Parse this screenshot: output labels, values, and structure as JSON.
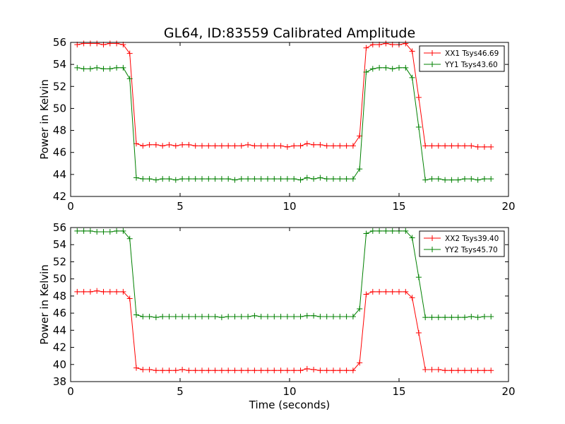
{
  "title": "GL64, ID:83559 Calibrated Amplitude",
  "chart_data": [
    {
      "type": "line",
      "title": "GL64, ID:83559 Calibrated Amplitude",
      "xlabel": "",
      "ylabel": "Power in Kelvin",
      "xlim": [
        0,
        20
      ],
      "ylim": [
        42,
        56
      ],
      "xticks": [
        "0",
        "5",
        "10",
        "15",
        "20"
      ],
      "yticks": [
        "42",
        "44",
        "46",
        "48",
        "50",
        "52",
        "54",
        "56"
      ],
      "grid": false,
      "legend_position": "top-right",
      "x": [
        0.3,
        0.6,
        0.9,
        1.2,
        1.5,
        1.8,
        2.1,
        2.4,
        2.7,
        3.0,
        3.3,
        3.6,
        3.9,
        4.2,
        4.5,
        4.8,
        5.1,
        5.4,
        5.7,
        6.0,
        6.3,
        6.6,
        6.9,
        7.2,
        7.5,
        7.8,
        8.1,
        8.4,
        8.7,
        9.0,
        9.3,
        9.6,
        9.9,
        10.2,
        10.5,
        10.8,
        11.1,
        11.4,
        11.7,
        12.0,
        12.3,
        12.6,
        12.9,
        13.2,
        13.5,
        13.8,
        14.1,
        14.4,
        14.7,
        15.0,
        15.3,
        15.6,
        15.9,
        16.2,
        16.5,
        16.8,
        17.1,
        17.4,
        17.7,
        18.0,
        18.3,
        18.6,
        18.9,
        19.2
      ],
      "series": [
        {
          "name": "XX1 Tsys46.69",
          "color": "#ff0000",
          "values": [
            55.8,
            55.9,
            55.9,
            55.9,
            55.8,
            55.9,
            55.9,
            55.8,
            55.0,
            46.8,
            46.6,
            46.7,
            46.7,
            46.6,
            46.7,
            46.6,
            46.7,
            46.7,
            46.6,
            46.6,
            46.6,
            46.6,
            46.6,
            46.6,
            46.6,
            46.6,
            46.7,
            46.6,
            46.6,
            46.6,
            46.6,
            46.6,
            46.5,
            46.6,
            46.6,
            46.8,
            46.7,
            46.7,
            46.6,
            46.6,
            46.6,
            46.6,
            46.6,
            47.5,
            55.5,
            55.8,
            55.8,
            55.9,
            55.8,
            55.8,
            55.9,
            55.2,
            51.0,
            46.6,
            46.6,
            46.6,
            46.6,
            46.6,
            46.6,
            46.6,
            46.6,
            46.5,
            46.5,
            46.5
          ]
        },
        {
          "name": "YY1 Tsys43.60",
          "color": "#008000",
          "values": [
            53.7,
            53.6,
            53.6,
            53.7,
            53.6,
            53.6,
            53.7,
            53.7,
            52.7,
            43.7,
            43.6,
            43.6,
            43.5,
            43.6,
            43.6,
            43.5,
            43.6,
            43.6,
            43.6,
            43.6,
            43.6,
            43.6,
            43.6,
            43.6,
            43.5,
            43.6,
            43.6,
            43.6,
            43.6,
            43.6,
            43.6,
            43.6,
            43.6,
            43.6,
            43.5,
            43.7,
            43.6,
            43.7,
            43.6,
            43.6,
            43.6,
            43.6,
            43.6,
            44.5,
            53.3,
            53.6,
            53.7,
            53.7,
            53.6,
            53.7,
            53.7,
            52.8,
            48.3,
            43.5,
            43.6,
            43.6,
            43.5,
            43.5,
            43.5,
            43.6,
            43.6,
            43.5,
            43.6,
            43.6
          ]
        }
      ]
    },
    {
      "type": "line",
      "title": "",
      "xlabel": "Time (seconds)",
      "ylabel": "Power in Kelvin",
      "xlim": [
        0,
        20
      ],
      "ylim": [
        38,
        56
      ],
      "xticks": [
        "0",
        "5",
        "10",
        "15",
        "20"
      ],
      "yticks": [
        "38",
        "40",
        "42",
        "44",
        "46",
        "48",
        "50",
        "52",
        "54",
        "56"
      ],
      "grid": false,
      "legend_position": "top-right",
      "x": [
        0.3,
        0.6,
        0.9,
        1.2,
        1.5,
        1.8,
        2.1,
        2.4,
        2.7,
        3.0,
        3.3,
        3.6,
        3.9,
        4.2,
        4.5,
        4.8,
        5.1,
        5.4,
        5.7,
        6.0,
        6.3,
        6.6,
        6.9,
        7.2,
        7.5,
        7.8,
        8.1,
        8.4,
        8.7,
        9.0,
        9.3,
        9.6,
        9.9,
        10.2,
        10.5,
        10.8,
        11.1,
        11.4,
        11.7,
        12.0,
        12.3,
        12.6,
        12.9,
        13.2,
        13.5,
        13.8,
        14.1,
        14.4,
        14.7,
        15.0,
        15.3,
        15.6,
        15.9,
        16.2,
        16.5,
        16.8,
        17.1,
        17.4,
        17.7,
        18.0,
        18.3,
        18.6,
        18.9,
        19.2
      ],
      "series": [
        {
          "name": "XX2 Tsys39.40",
          "color": "#ff0000",
          "values": [
            48.5,
            48.5,
            48.5,
            48.6,
            48.5,
            48.5,
            48.5,
            48.5,
            47.7,
            39.6,
            39.4,
            39.4,
            39.3,
            39.3,
            39.3,
            39.3,
            39.4,
            39.3,
            39.3,
            39.3,
            39.3,
            39.3,
            39.3,
            39.3,
            39.3,
            39.3,
            39.3,
            39.3,
            39.3,
            39.3,
            39.3,
            39.3,
            39.3,
            39.3,
            39.3,
            39.5,
            39.4,
            39.3,
            39.3,
            39.3,
            39.3,
            39.3,
            39.3,
            40.2,
            48.2,
            48.5,
            48.5,
            48.5,
            48.5,
            48.5,
            48.5,
            47.8,
            43.7,
            39.4,
            39.4,
            39.4,
            39.3,
            39.3,
            39.3,
            39.3,
            39.3,
            39.3,
            39.3,
            39.3
          ]
        },
        {
          "name": "YY2 Tsys45.70",
          "color": "#008000",
          "values": [
            55.6,
            55.6,
            55.6,
            55.5,
            55.5,
            55.5,
            55.6,
            55.6,
            54.7,
            45.8,
            45.6,
            45.6,
            45.5,
            45.6,
            45.6,
            45.6,
            45.6,
            45.6,
            45.6,
            45.6,
            45.6,
            45.6,
            45.5,
            45.6,
            45.6,
            45.6,
            45.6,
            45.7,
            45.6,
            45.6,
            45.6,
            45.6,
            45.6,
            45.6,
            45.6,
            45.7,
            45.7,
            45.6,
            45.6,
            45.6,
            45.6,
            45.6,
            45.6,
            46.5,
            55.3,
            55.6,
            55.6,
            55.6,
            55.6,
            55.6,
            55.6,
            54.8,
            50.2,
            45.5,
            45.5,
            45.5,
            45.5,
            45.5,
            45.5,
            45.5,
            45.6,
            45.5,
            45.6,
            45.6
          ]
        }
      ]
    }
  ]
}
